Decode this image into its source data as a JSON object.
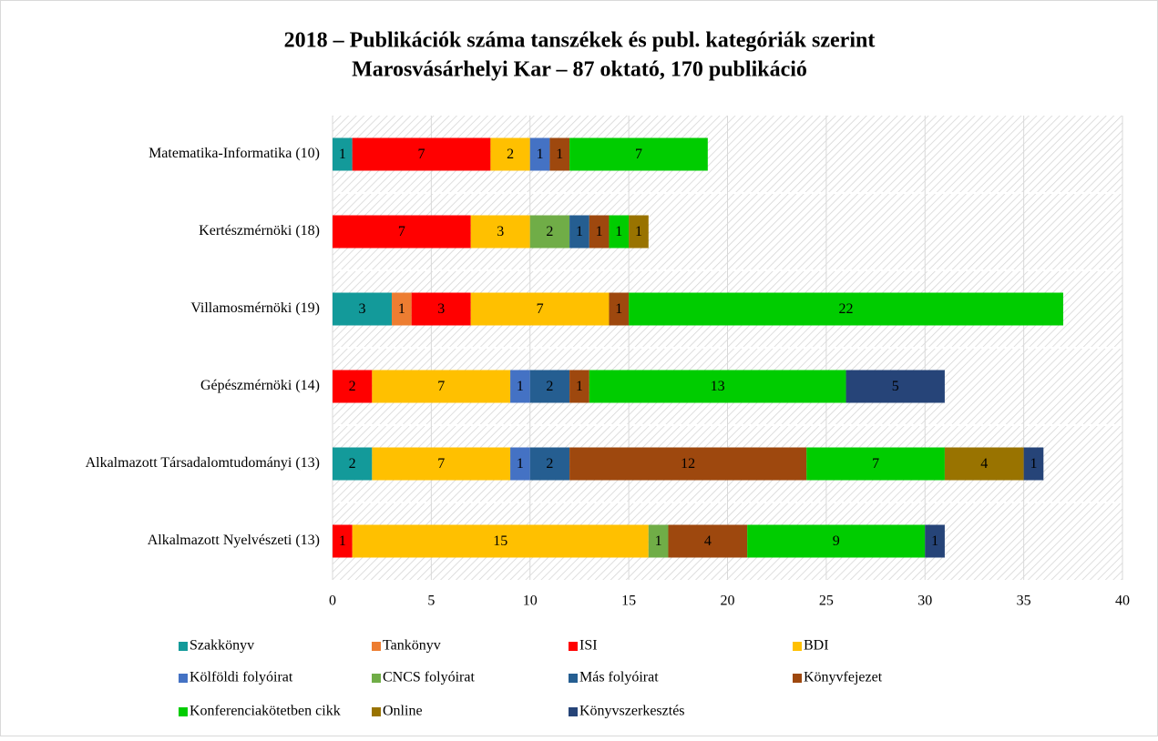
{
  "chart_data": {
    "type": "stacked-barh",
    "title": [
      "2018 – Publikációk száma tanszékek és publ. kategóriák szerint",
      "Marosvásárhelyi Kar – 87 oktató, 170 publikáció"
    ],
    "categories": [
      "Matematika-Informatika (10)",
      "Kertészmérnöki (18)",
      "Villamosmérnöki (19)",
      "Gépészmérnöki (14)",
      "Alkalmazott Társadalomtudományi (13)",
      "Alkalmazott Nyelvészeti (13)"
    ],
    "series": [
      {
        "name": "Szakkönyv",
        "color": "#139a9a",
        "values": [
          1,
          null,
          3,
          null,
          2,
          null
        ]
      },
      {
        "name": "Tankönyv",
        "color": "#ed7d31",
        "values": [
          null,
          null,
          1,
          null,
          null,
          null
        ]
      },
      {
        "name": "ISI",
        "color": "#ff0000",
        "values": [
          7,
          7,
          3,
          2,
          null,
          1
        ]
      },
      {
        "name": "BDI",
        "color": "#ffc000",
        "values": [
          2,
          3,
          7,
          7,
          7,
          15
        ]
      },
      {
        "name": "Kölföldi folyóirat",
        "color": "#4472c4",
        "values": [
          1,
          null,
          null,
          1,
          1,
          null
        ]
      },
      {
        "name": "CNCS folyóirat",
        "color": "#70ad47",
        "values": [
          null,
          2,
          null,
          null,
          null,
          1
        ]
      },
      {
        "name": "Más folyóirat",
        "color": "#255e91",
        "values": [
          null,
          1,
          null,
          2,
          2,
          null
        ]
      },
      {
        "name": "Könyvfejezet",
        "color": "#9e480e",
        "values": [
          1,
          1,
          1,
          1,
          12,
          4
        ]
      },
      {
        "name": "Konferenciakötetben cikk",
        "color": "#00cc00",
        "values": [
          7,
          1,
          22,
          13,
          7,
          9
        ]
      },
      {
        "name": "Online",
        "color": "#997300",
        "values": [
          null,
          1,
          null,
          null,
          4,
          null
        ]
      },
      {
        "name": "Könyvszerkesztés",
        "color": "#264478",
        "values": [
          null,
          null,
          null,
          5,
          1,
          1
        ]
      }
    ],
    "xlim": [
      0,
      40
    ],
    "xticks": [
      0,
      5,
      10,
      15,
      20,
      25,
      30,
      35,
      40
    ],
    "grid": true,
    "legend": "bottom"
  }
}
